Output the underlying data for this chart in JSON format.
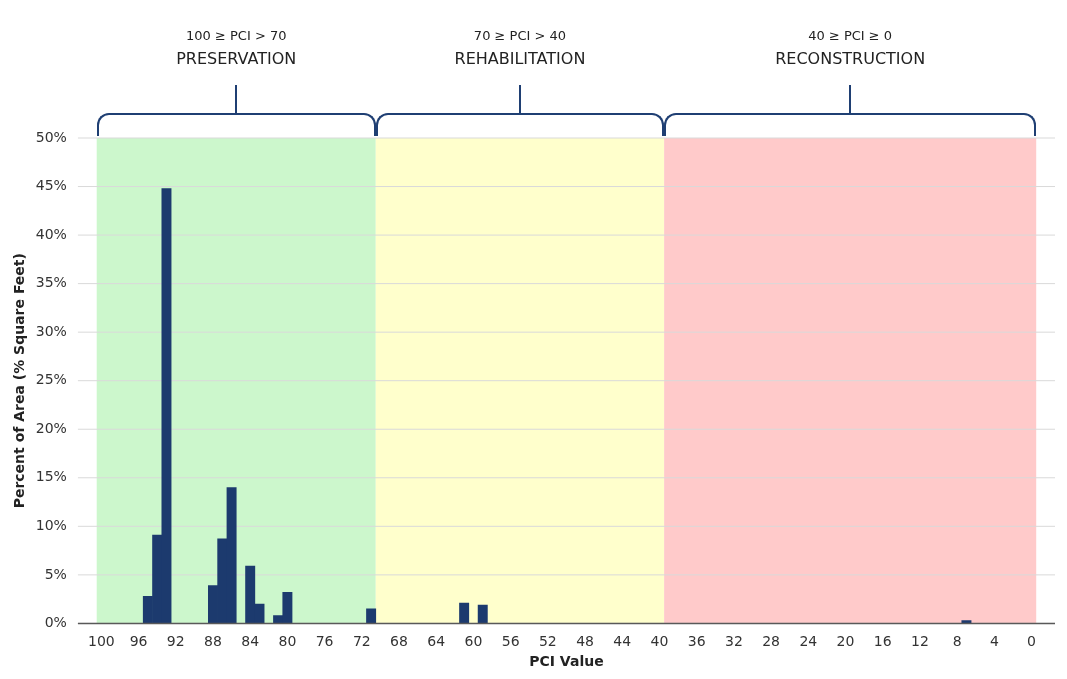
{
  "chart_data": {
    "type": "bar",
    "xlabel": "PCI Value",
    "ylabel": "Percent of Area (% Square Feet)",
    "x": [
      95,
      94,
      93,
      88,
      87,
      86,
      84,
      83,
      81,
      80,
      71,
      61,
      59,
      7
    ],
    "series": [
      {
        "color": "#1c3a6e",
        "values": [
          2.8,
          9.1,
          44.8,
          3.9,
          8.7,
          14.0,
          5.9,
          2.0,
          0.8,
          3.2,
          1.5,
          2.1,
          1.9,
          0.3
        ]
      }
    ],
    "xlim": [
      100.5,
      -0.5
    ],
    "xticks": [
      100,
      96,
      92,
      88,
      84,
      80,
      76,
      72,
      68,
      64,
      60,
      56,
      52,
      48,
      44,
      40,
      36,
      32,
      28,
      24,
      20,
      16,
      12,
      8,
      4,
      0
    ],
    "ylim": [
      0,
      50
    ],
    "yticks": [
      {
        "value": 0,
        "label": "0%"
      },
      {
        "value": 5,
        "label": "5%"
      },
      {
        "value": 10,
        "label": "10%"
      },
      {
        "value": 15,
        "label": "15%"
      },
      {
        "value": 20,
        "label": "20%"
      },
      {
        "value": 25,
        "label": "25%"
      },
      {
        "value": 30,
        "label": "30%"
      },
      {
        "value": 35,
        "label": "35%"
      },
      {
        "value": 40,
        "label": "40%"
      },
      {
        "value": 45,
        "label": "45%"
      },
      {
        "value": 50,
        "label": "50%"
      }
    ],
    "bands": [
      {
        "axis": "x",
        "from": 100.5,
        "to": 70.5,
        "color": "#ccf7cc"
      },
      {
        "axis": "x",
        "from": 70.5,
        "to": 39.5,
        "color": "#ffffcc"
      },
      {
        "axis": "x",
        "from": 39.5,
        "to": -0.5,
        "color": "#ffcaca"
      }
    ],
    "annotations": [
      "100 ≥ PCI > 70\nPRESERVATION",
      "70 ≥ PCI > 40\nREHABILITATION",
      "40 ≥ PCI ≥ 0\nRECONSTRUCTION"
    ],
    "grid": "y",
    "legend": false
  }
}
